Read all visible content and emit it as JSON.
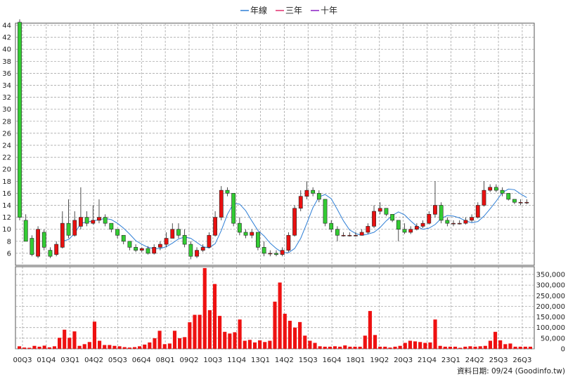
{
  "chart_data": [
    {
      "type": "candlestick",
      "legend": [
        {
          "name": "年線",
          "color": "#2f7fd6"
        },
        {
          "name": "三年",
          "color": "#e0306f"
        },
        {
          "name": "十年",
          "color": "#8a1fc4"
        }
      ],
      "colors": {
        "up": "#e81010",
        "down": "#33cc33",
        "grid": "#9a9a9a"
      },
      "y_ticks": [
        6,
        8,
        10,
        12,
        14,
        16,
        18,
        20,
        22,
        24,
        26,
        28,
        30,
        32,
        34,
        36,
        38,
        40,
        42,
        44
      ],
      "x_tick_labels": [
        "00Q3",
        "01Q4",
        "03Q1",
        "04Q2",
        "05Q3",
        "06Q4",
        "08Q1",
        "09Q2",
        "10Q3",
        "11Q4",
        "13Q1",
        "14Q2",
        "15Q3",
        "16Q4",
        "18Q1",
        "19Q2",
        "20Q3",
        "21Q4",
        "23Q1",
        "24Q2",
        "25Q3",
        "26Q3"
      ],
      "series": [
        {
          "name": "price",
          "type": "candlestick",
          "open": [
            44.5,
            11.5,
            8.5,
            5.5,
            9.5,
            6.5,
            5.8,
            7,
            11,
            9,
            10.5,
            12,
            11,
            11.5,
            12,
            11,
            10,
            9,
            8,
            7,
            6.5,
            6.8,
            6,
            7,
            7.5,
            8.5,
            10,
            9,
            7.5,
            5.5,
            6.5,
            7,
            9,
            12,
            16.5,
            16,
            11,
            9.5,
            9,
            9.5,
            7,
            6,
            6,
            5.8,
            6.5,
            9,
            13.5,
            15.5,
            16.5,
            16,
            15,
            11,
            10,
            9,
            9,
            9,
            9,
            9.5,
            10.5,
            13,
            13.5,
            12.5,
            11.5,
            10,
            9.5,
            10,
            10.5,
            11,
            12.5,
            14,
            11.5,
            11,
            11,
            11,
            11.5,
            12,
            14,
            16.5,
            17,
            16.5,
            16,
            15,
            14.5,
            14.5
          ],
          "close": [
            12,
            8,
            5.8,
            10,
            7,
            5.5,
            7.5,
            11,
            9,
            11.5,
            12,
            11,
            11.5,
            12,
            11,
            10,
            9,
            8,
            7,
            6.5,
            6.8,
            6,
            7,
            7.5,
            8.5,
            10,
            9,
            7.5,
            5.5,
            6.5,
            7,
            9,
            12,
            16.5,
            16,
            11,
            9.5,
            9,
            9.5,
            7,
            6,
            6,
            5.8,
            6.5,
            9,
            13.5,
            15.5,
            16.5,
            16,
            15,
            11,
            10,
            9,
            9,
            9,
            9,
            9.5,
            10.5,
            13,
            13.5,
            12.5,
            11.5,
            10,
            9.5,
            10,
            10.5,
            11,
            12.5,
            14,
            11.5,
            11,
            11,
            11,
            11.5,
            12,
            14,
            16.5,
            17,
            16.5,
            16,
            15,
            14.5,
            14.5,
            14.5
          ],
          "high": [
            45,
            12.5,
            9,
            10.5,
            10,
            7,
            8,
            13,
            15,
            13,
            17,
            13,
            14,
            15,
            12.5,
            11,
            10,
            9,
            8,
            7.5,
            7,
            7.2,
            7.5,
            8,
            9.5,
            11,
            11,
            10,
            8,
            7,
            7.5,
            9.5,
            13,
            17.2,
            17,
            16,
            12,
            10,
            10,
            9.5,
            8,
            6.5,
            6.5,
            7,
            9.5,
            14,
            16.5,
            18,
            17,
            16.5,
            15,
            11.5,
            10.5,
            9.5,
            9.5,
            9.5,
            10,
            11,
            14,
            14.5,
            13.5,
            12.5,
            11.5,
            11,
            10.5,
            11,
            11.5,
            13,
            18,
            14.5,
            12,
            11.5,
            11.5,
            12,
            12.5,
            14.5,
            18,
            17.5,
            17.5,
            17,
            16,
            15,
            15,
            15
          ],
          "low": [
            11.5,
            8,
            5.5,
            5.2,
            6.5,
            5.2,
            5.5,
            6.8,
            8.5,
            8.8,
            10,
            10.5,
            10.8,
            11,
            10.5,
            9.5,
            8.5,
            7.5,
            6.5,
            6.2,
            6.2,
            5.8,
            5.8,
            6.5,
            7,
            8.5,
            8.5,
            7,
            5,
            5.2,
            6.2,
            6.8,
            8.8,
            11.5,
            15.5,
            10.5,
            9,
            8.5,
            8.5,
            6.5,
            5.5,
            5.5,
            5.5,
            5.5,
            6.2,
            8.8,
            13,
            15,
            15.5,
            14.5,
            10.5,
            9.5,
            8,
            8.8,
            8.8,
            8.8,
            9,
            9.2,
            10.2,
            12.5,
            12.2,
            11.2,
            8,
            9.2,
            9.2,
            9.8,
            10.2,
            10.8,
            12,
            11,
            10.5,
            10.5,
            10.8,
            10.8,
            11.2,
            11.8,
            13.8,
            16.2,
            16.2,
            15.5,
            14.8,
            14.2,
            14,
            14.2
          ]
        },
        {
          "name": "年線",
          "values": [
            null,
            null,
            null,
            null,
            null,
            null,
            null,
            8,
            8.3,
            9.3,
            11,
            11.2,
            11.4,
            11.6,
            11.8,
            11.6,
            11,
            10.2,
            9.2,
            8.1,
            7.5,
            7,
            6.8,
            6.8,
            7.1,
            7.7,
            8.4,
            8.7,
            8.5,
            7.8,
            7.1,
            6.9,
            7.6,
            9.8,
            12.5,
            14.3,
            14.2,
            13.1,
            11.4,
            9.8,
            8.9,
            7.7,
            6.8,
            6.1,
            6.1,
            6.8,
            8.5,
            11,
            13.6,
            15.4,
            15.8,
            15.1,
            13.3,
            11.4,
            9.9,
            9.3,
            9,
            9.2,
            9.5,
            10.3,
            11.4,
            12.3,
            12.9,
            12.4,
            11.4,
            10.5,
            10,
            10.2,
            10.8,
            11.8,
            12.3,
            12.2,
            11.9,
            11.4,
            11.1,
            11.3,
            12.2,
            13.4,
            14.7,
            16.1,
            16.7,
            16.6,
            15.9,
            15.3
          ]
        },
        {
          "name": "三年",
          "values": [
            null,
            null,
            null,
            null,
            null,
            null,
            null,
            null,
            null,
            null,
            null,
            null,
            null,
            null,
            null,
            null,
            null,
            null,
            null,
            null,
            null,
            null,
            null,
            null,
            null,
            null,
            null,
            null,
            null,
            null,
            null,
            null,
            null,
            null,
            null,
            null,
            null,
            null,
            null,
            null,
            null,
            null,
            null,
            null,
            null,
            null,
            null,
            null,
            null,
            null,
            null,
            null,
            null,
            null,
            null,
            null,
            null,
            null,
            null,
            null,
            null,
            null,
            null,
            null,
            null,
            null,
            null,
            null,
            null,
            null,
            null,
            null,
            null,
            null,
            null,
            null,
            null,
            null,
            null,
            null,
            null,
            null,
            null,
            null
          ]
        },
        {
          "name": "十年",
          "values": [
            null,
            null,
            null,
            null,
            null,
            null,
            null,
            null,
            null,
            null,
            null,
            null,
            null,
            null,
            null,
            null,
            null,
            null,
            null,
            null,
            null,
            null,
            null,
            null,
            null,
            null,
            null,
            null,
            null,
            null,
            null,
            null,
            null,
            null,
            null,
            null,
            null,
            null,
            null,
            null,
            null,
            null,
            null,
            null,
            null,
            null,
            null,
            null,
            null,
            null,
            null,
            null,
            null,
            null,
            null,
            null,
            null,
            null,
            null,
            null,
            null,
            null,
            null,
            null,
            null,
            null,
            null,
            null,
            null,
            null,
            null,
            null,
            null,
            null,
            null,
            null,
            null,
            null,
            null,
            null,
            null,
            null,
            null,
            null
          ]
        }
      ]
    },
    {
      "type": "bar",
      "y_ticks": [
        0,
        50000,
        100000,
        150000,
        200000,
        250000,
        300000,
        350000
      ],
      "y_tick_labels": [
        "0",
        "50,000",
        "100,000",
        "150,000",
        "200,000",
        "250,000",
        "300,000",
        "350,000"
      ],
      "values": [
        12000,
        6000,
        5000,
        14000,
        10000,
        15000,
        7000,
        12000,
        52000,
        90000,
        52000,
        82000,
        14000,
        22000,
        32000,
        128000,
        38000,
        18000,
        18000,
        14000,
        12000,
        8000,
        6000,
        8000,
        12000,
        20000,
        30000,
        50000,
        85000,
        22000,
        25000,
        85000,
        50000,
        55000,
        125000,
        160000,
        160000,
        380000,
        182000,
        305000,
        155000,
        80000,
        72000,
        78000,
        138000,
        38000,
        42000,
        30000,
        40000,
        32000,
        38000,
        222000,
        312000,
        165000,
        132000,
        100000,
        126000,
        62000,
        38000,
        28000,
        12000,
        10000,
        10000,
        12000,
        10000,
        16000,
        10000,
        10000,
        10000,
        62000,
        178000,
        65000,
        10000,
        10000,
        6000,
        10000,
        14000,
        28000,
        38000,
        35000,
        32000,
        28000,
        30000,
        138000,
        14000,
        10000,
        10000,
        10000,
        5000,
        10000,
        12000,
        10000,
        12000,
        14000,
        38000,
        80000,
        40000,
        22000,
        25000,
        10000,
        10000,
        10000,
        10000
      ]
    }
  ],
  "footer": {
    "source": "資料日期: 09/24  (Goodinfo.tw)"
  }
}
